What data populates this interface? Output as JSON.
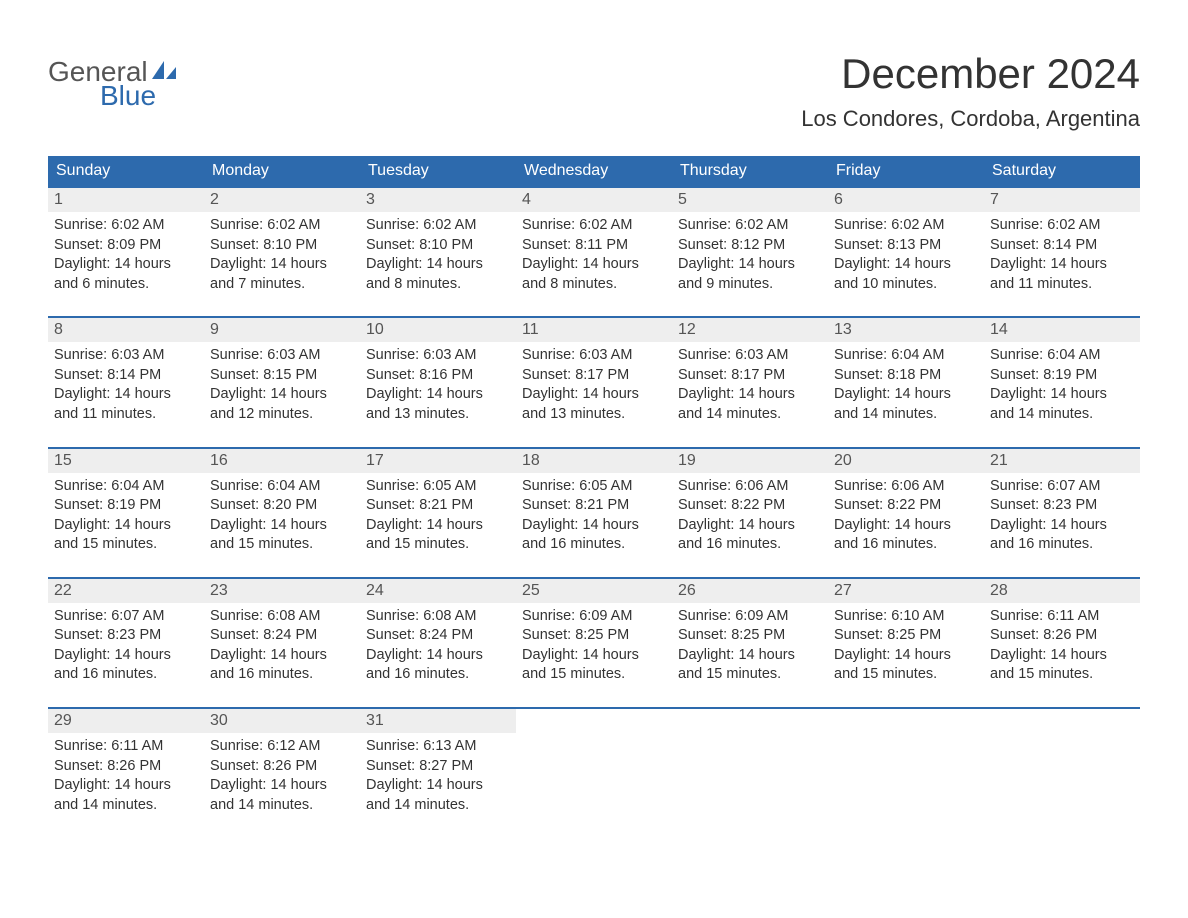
{
  "logo": {
    "text1": "General",
    "text2": "Blue"
  },
  "title": "December 2024",
  "subtitle": "Los Condores, Cordoba, Argentina",
  "colors": {
    "header_bg": "#2d6aad",
    "header_text": "#ffffff",
    "daynum_bg": "#eeeeee",
    "week_border": "#2d6aad",
    "body_text": "#333333",
    "page_bg": "#ffffff"
  },
  "day_names": [
    "Sunday",
    "Monday",
    "Tuesday",
    "Wednesday",
    "Thursday",
    "Friday",
    "Saturday"
  ],
  "labels": {
    "sunrise": "Sunrise:",
    "sunset": "Sunset:",
    "daylight": "Daylight:"
  },
  "days": [
    {
      "n": 1,
      "sunrise": "6:02 AM",
      "sunset": "8:09 PM",
      "daylight": "14 hours and 6 minutes."
    },
    {
      "n": 2,
      "sunrise": "6:02 AM",
      "sunset": "8:10 PM",
      "daylight": "14 hours and 7 minutes."
    },
    {
      "n": 3,
      "sunrise": "6:02 AM",
      "sunset": "8:10 PM",
      "daylight": "14 hours and 8 minutes."
    },
    {
      "n": 4,
      "sunrise": "6:02 AM",
      "sunset": "8:11 PM",
      "daylight": "14 hours and 8 minutes."
    },
    {
      "n": 5,
      "sunrise": "6:02 AM",
      "sunset": "8:12 PM",
      "daylight": "14 hours and 9 minutes."
    },
    {
      "n": 6,
      "sunrise": "6:02 AM",
      "sunset": "8:13 PM",
      "daylight": "14 hours and 10 minutes."
    },
    {
      "n": 7,
      "sunrise": "6:02 AM",
      "sunset": "8:14 PM",
      "daylight": "14 hours and 11 minutes."
    },
    {
      "n": 8,
      "sunrise": "6:03 AM",
      "sunset": "8:14 PM",
      "daylight": "14 hours and 11 minutes."
    },
    {
      "n": 9,
      "sunrise": "6:03 AM",
      "sunset": "8:15 PM",
      "daylight": "14 hours and 12 minutes."
    },
    {
      "n": 10,
      "sunrise": "6:03 AM",
      "sunset": "8:16 PM",
      "daylight": "14 hours and 13 minutes."
    },
    {
      "n": 11,
      "sunrise": "6:03 AM",
      "sunset": "8:17 PM",
      "daylight": "14 hours and 13 minutes."
    },
    {
      "n": 12,
      "sunrise": "6:03 AM",
      "sunset": "8:17 PM",
      "daylight": "14 hours and 14 minutes."
    },
    {
      "n": 13,
      "sunrise": "6:04 AM",
      "sunset": "8:18 PM",
      "daylight": "14 hours and 14 minutes."
    },
    {
      "n": 14,
      "sunrise": "6:04 AM",
      "sunset": "8:19 PM",
      "daylight": "14 hours and 14 minutes."
    },
    {
      "n": 15,
      "sunrise": "6:04 AM",
      "sunset": "8:19 PM",
      "daylight": "14 hours and 15 minutes."
    },
    {
      "n": 16,
      "sunrise": "6:04 AM",
      "sunset": "8:20 PM",
      "daylight": "14 hours and 15 minutes."
    },
    {
      "n": 17,
      "sunrise": "6:05 AM",
      "sunset": "8:21 PM",
      "daylight": "14 hours and 15 minutes."
    },
    {
      "n": 18,
      "sunrise": "6:05 AM",
      "sunset": "8:21 PM",
      "daylight": "14 hours and 16 minutes."
    },
    {
      "n": 19,
      "sunrise": "6:06 AM",
      "sunset": "8:22 PM",
      "daylight": "14 hours and 16 minutes."
    },
    {
      "n": 20,
      "sunrise": "6:06 AM",
      "sunset": "8:22 PM",
      "daylight": "14 hours and 16 minutes."
    },
    {
      "n": 21,
      "sunrise": "6:07 AM",
      "sunset": "8:23 PM",
      "daylight": "14 hours and 16 minutes."
    },
    {
      "n": 22,
      "sunrise": "6:07 AM",
      "sunset": "8:23 PM",
      "daylight": "14 hours and 16 minutes."
    },
    {
      "n": 23,
      "sunrise": "6:08 AM",
      "sunset": "8:24 PM",
      "daylight": "14 hours and 16 minutes."
    },
    {
      "n": 24,
      "sunrise": "6:08 AM",
      "sunset": "8:24 PM",
      "daylight": "14 hours and 16 minutes."
    },
    {
      "n": 25,
      "sunrise": "6:09 AM",
      "sunset": "8:25 PM",
      "daylight": "14 hours and 15 minutes."
    },
    {
      "n": 26,
      "sunrise": "6:09 AM",
      "sunset": "8:25 PM",
      "daylight": "14 hours and 15 minutes."
    },
    {
      "n": 27,
      "sunrise": "6:10 AM",
      "sunset": "8:25 PM",
      "daylight": "14 hours and 15 minutes."
    },
    {
      "n": 28,
      "sunrise": "6:11 AM",
      "sunset": "8:26 PM",
      "daylight": "14 hours and 15 minutes."
    },
    {
      "n": 29,
      "sunrise": "6:11 AM",
      "sunset": "8:26 PM",
      "daylight": "14 hours and 14 minutes."
    },
    {
      "n": 30,
      "sunrise": "6:12 AM",
      "sunset": "8:26 PM",
      "daylight": "14 hours and 14 minutes."
    },
    {
      "n": 31,
      "sunrise": "6:13 AM",
      "sunset": "8:27 PM",
      "daylight": "14 hours and 14 minutes."
    }
  ],
  "layout": {
    "start_weekday": 0,
    "weeks": 5,
    "cols": 7
  }
}
